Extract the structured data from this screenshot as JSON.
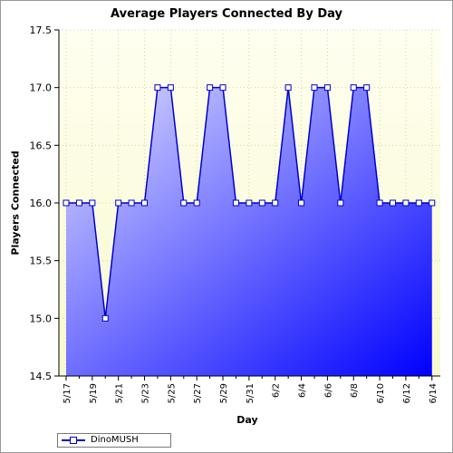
{
  "chart_data": {
    "type": "area",
    "title": "Average Players Connected By Day",
    "xlabel": "Day",
    "ylabel": "Players Connected",
    "ylim": [
      14.5,
      17.5
    ],
    "yticks": [
      "17.5",
      "17.0",
      "16.5",
      "16.0",
      "15.5",
      "15.0",
      "14.5"
    ],
    "xticks": [
      "5/17",
      "5/19",
      "5/21",
      "5/23",
      "5/25",
      "5/27",
      "5/29",
      "5/31",
      "6/2",
      "6/4",
      "6/6",
      "6/8",
      "6/10",
      "6/12",
      "6/14"
    ],
    "x": [
      "5/17",
      "5/18",
      "5/19",
      "5/20",
      "5/21",
      "5/22",
      "5/23",
      "5/24",
      "5/25",
      "5/26",
      "5/27",
      "5/28",
      "5/29",
      "5/30",
      "5/31",
      "6/1",
      "6/2",
      "6/3",
      "6/4",
      "6/5",
      "6/6",
      "6/7",
      "6/8",
      "6/9",
      "6/10",
      "6/11",
      "6/12",
      "6/13",
      "6/14"
    ],
    "series": [
      {
        "name": "DinoMUSH",
        "values": [
          16,
          16,
          16,
          15,
          16,
          16,
          16,
          17,
          17,
          16,
          16,
          17,
          17,
          16,
          16,
          16,
          16,
          17,
          16,
          17,
          17,
          16,
          17,
          17,
          16,
          16,
          16,
          16,
          16
        ]
      }
    ],
    "grid": true,
    "legend": "bottom-left",
    "colors": {
      "plot_bg_top": "#ffffff",
      "plot_bg_bottom": "#fafad2",
      "line": "#0000cc",
      "fill_light": "#d8d8ff",
      "fill_dark": "#0000ff",
      "marker_fill": "#ffffff",
      "grid": "#c8c8a0"
    }
  }
}
